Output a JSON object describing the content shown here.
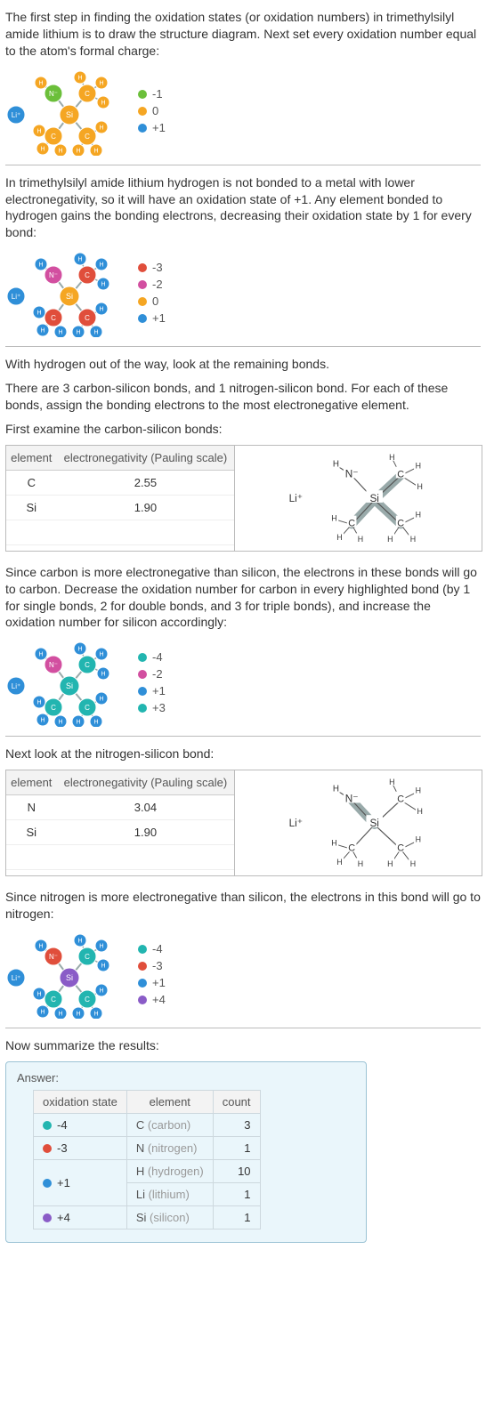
{
  "colors": {
    "orange": "#f5a623",
    "green": "#6bbf3a",
    "blue": "#2f8fd8",
    "red": "#e04e3b",
    "magenta": "#d24fa0",
    "teal": "#22b5b0",
    "purple": "#8a5cc7",
    "gray": "#bfbfbf",
    "siCore": "#f5a623",
    "liBlue": "#2f8fd8"
  },
  "para1": "The first step in finding the oxidation states (or oxidation numbers) in trimethylsilyl amide lithium is to draw the structure diagram. Next set every oxidation number equal to the atom's formal charge:",
  "mol1": {
    "legend": [
      {
        "color": "green",
        "label": "-1"
      },
      {
        "color": "orange",
        "label": "0"
      },
      {
        "color": "blue",
        "label": "+1"
      }
    ],
    "atoms": {
      "Li": "blue",
      "N": "green",
      "C_top": "orange",
      "C_bl": "orange",
      "C_br": "orange",
      "H": "orange",
      "Si": "orange"
    }
  },
  "para2": "In trimethylsilyl amide lithium hydrogen is not bonded to a metal with lower electronegativity, so it will have an oxidation state of +1. Any element bonded to hydrogen gains the bonding electrons, decreasing their oxidation state by 1 for every bond:",
  "mol2": {
    "legend": [
      {
        "color": "red",
        "label": "-3"
      },
      {
        "color": "magenta",
        "label": "-2"
      },
      {
        "color": "orange",
        "label": "0"
      },
      {
        "color": "blue",
        "label": "+1"
      }
    ],
    "atoms": {
      "Li": "blue",
      "N": "magenta",
      "C_top": "red",
      "C_bl": "red",
      "C_br": "red",
      "H": "blue",
      "Si": "orange"
    }
  },
  "para3a": "With hydrogen out of the way, look at the remaining bonds.",
  "para3b": "There are 3 carbon-silicon bonds, and 1 nitrogen-silicon bond.  For each of these bonds, assign the bonding electrons to the most electronegative element.",
  "para3c": "First examine the carbon-silicon bonds:",
  "en1": {
    "header1": "element",
    "header2": "electronegativity (Pauling scale)",
    "rows": [
      {
        "el": "C",
        "val": "2.55"
      },
      {
        "el": "Si",
        "val": "1.90"
      }
    ],
    "highlight_bonds": "SiC"
  },
  "para4": "Since carbon is more electronegative than silicon, the electrons in these bonds will go to carbon. Decrease the oxidation number for carbon in every highlighted bond (by 1 for single bonds, 2 for double bonds, and 3 for triple bonds), and increase the oxidation number for silicon accordingly:",
  "mol3": {
    "legend": [
      {
        "color": "teal",
        "label": "-4"
      },
      {
        "color": "magenta",
        "label": "-2"
      },
      {
        "color": "blue",
        "label": "+1"
      },
      {
        "color": "teal",
        "label": "+3"
      }
    ],
    "atoms": {
      "Li": "blue",
      "N": "magenta",
      "C_top": "teal",
      "C_bl": "teal",
      "C_br": "teal",
      "H": "blue",
      "Si": "teal"
    }
  },
  "para5": "Next look at the nitrogen-silicon bond:",
  "en2": {
    "header1": "element",
    "header2": "electronegativity (Pauling scale)",
    "rows": [
      {
        "el": "N",
        "val": "3.04"
      },
      {
        "el": "Si",
        "val": "1.90"
      }
    ],
    "highlight_bonds": "SiN"
  },
  "para6": "Since nitrogen is more electronegative than silicon, the electrons in this bond will go to nitrogen:",
  "mol4": {
    "legend": [
      {
        "color": "teal",
        "label": "-4"
      },
      {
        "color": "red",
        "label": "-3"
      },
      {
        "color": "blue",
        "label": "+1"
      },
      {
        "color": "purple",
        "label": "+4"
      }
    ],
    "atoms": {
      "Li": "blue",
      "N": "red",
      "C_top": "teal",
      "C_bl": "teal",
      "C_br": "teal",
      "H": "blue",
      "Si": "purple"
    }
  },
  "para7": "Now summarize the results:",
  "answer": {
    "label": "Answer:",
    "headers": [
      "oxidation state",
      "element",
      "count"
    ],
    "rows": [
      {
        "color": "teal",
        "ox": "-4",
        "el_sym": "C",
        "el_name": "(carbon)",
        "count": "3",
        "rowspan": 1
      },
      {
        "color": "red",
        "ox": "-3",
        "el_sym": "N",
        "el_name": "(nitrogen)",
        "count": "1",
        "rowspan": 1
      },
      {
        "color": "blue",
        "ox": "+1",
        "el_sym": "H",
        "el_name": "(hydrogen)",
        "count": "10",
        "rowspan": 2
      },
      {
        "color": null,
        "ox": "",
        "el_sym": "Li",
        "el_name": "(lithium)",
        "count": "1",
        "rowspan": 0
      },
      {
        "color": "purple",
        "ox": "+4",
        "el_sym": "Si",
        "el_name": "(silicon)",
        "count": "1",
        "rowspan": 1
      }
    ]
  },
  "atom_labels": {
    "Li": "Li⁺",
    "N": "N⁻",
    "Si": "Si",
    "C": "C",
    "H": "H"
  }
}
